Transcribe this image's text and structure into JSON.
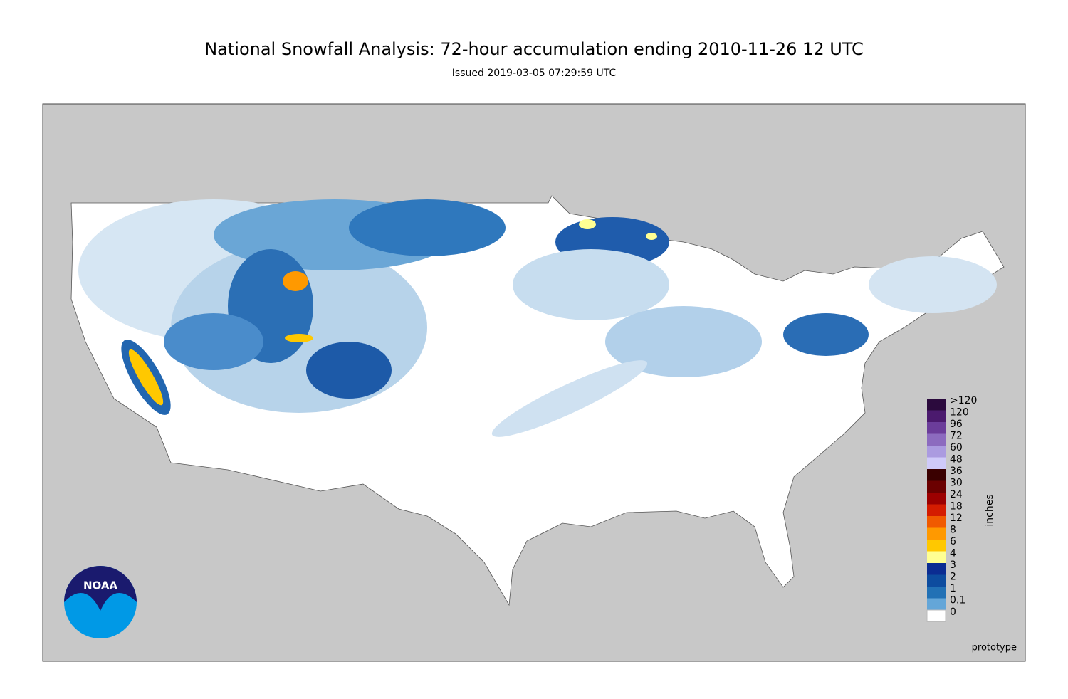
{
  "title": "National Snowfall Analysis: 72-hour accumulation ending 2010-11-26 12 UTC",
  "subtitle": "Issued 2019-03-05 07:29:59 UTC",
  "colorbar": {
    "label": "inches",
    "levels": [
      {
        "label": ">120",
        "color": "#2b0a3d"
      },
      {
        "label": "120",
        "color": "#4b1a6e"
      },
      {
        "label": "96",
        "color": "#6b3d9a"
      },
      {
        "label": "72",
        "color": "#8c6bbf"
      },
      {
        "label": "60",
        "color": "#ab9be0"
      },
      {
        "label": "48",
        "color": "#cfcaf9"
      },
      {
        "label": "36",
        "color": "#3a0000"
      },
      {
        "label": "30",
        "color": "#6b0000"
      },
      {
        "label": "24",
        "color": "#9c0000"
      },
      {
        "label": "18",
        "color": "#d41c00"
      },
      {
        "label": "12",
        "color": "#f05a00"
      },
      {
        "label": "8",
        "color": "#ff9900"
      },
      {
        "label": "6",
        "color": "#ffc800"
      },
      {
        "label": "4",
        "color": "#ffff93"
      },
      {
        "label": "3",
        "color": "#0b2c92"
      },
      {
        "label": "2",
        "color": "#0d4c9f"
      },
      {
        "label": "1",
        "color": "#2271b5"
      },
      {
        "label": "0.1",
        "color": "#64a6d8"
      },
      {
        "label": "0",
        "color": "#ffffff"
      }
    ]
  },
  "note": "prototype",
  "logo": "NOAA"
}
